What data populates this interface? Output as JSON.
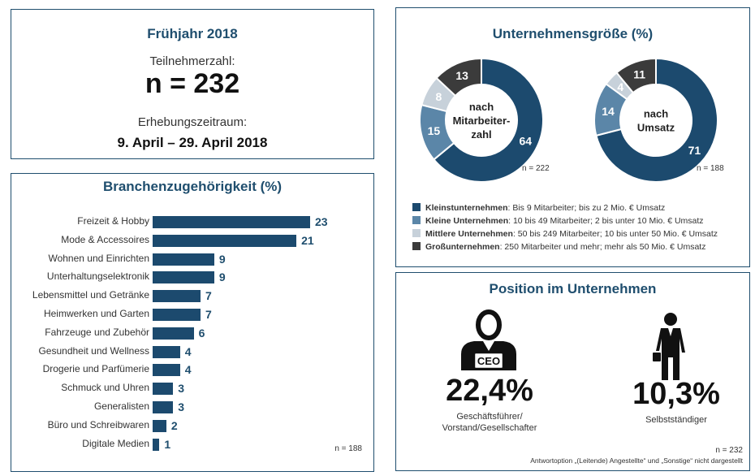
{
  "summary": {
    "title": "Frühjahr 2018",
    "participants_label": "Teilnehmerzahl:",
    "participants_value": "n = 232",
    "period_label": "Erhebungszeitraum:",
    "period_value": "9. April – 29. April 2018"
  },
  "branch": {
    "title": "Branchenzugehörigkeit (%)",
    "n_note": "n = 188"
  },
  "size": {
    "title": "Unternehmensgröße (%)",
    "donut1_center": [
      "nach",
      "Mitarbeiter-",
      "zahl"
    ],
    "donut1_n": "n = 222",
    "donut2_center": [
      "nach",
      "Umsatz"
    ],
    "donut2_n": "n = 188",
    "legend": [
      {
        "name": "Kleinstunternehmen",
        "desc": ": Bis 9 Mitarbeiter; bis zu 2 Mio. € Umsatz",
        "color": "#1c4a6e"
      },
      {
        "name": "Kleine Unternehmen",
        "desc": ": 10 bis 49 Mitarbeiter; 2 bis unter 10 Mio. € Umsatz",
        "color": "#5b86a8"
      },
      {
        "name": "Mittlere Unternehmen",
        "desc": ": 50 bis 249 Mitarbeiter; 10 bis unter 50 Mio. € Umsatz",
        "color": "#c7d1da"
      },
      {
        "name": "Großunternehmen",
        "desc": ": 250 Mitarbeiter und mehr; mehr als 50 Mio. € Umsatz",
        "color": "#3b3b3b"
      }
    ]
  },
  "position": {
    "title": "Position im Unternehmen",
    "ceo_badge": "CEO",
    "ceo_value": "22,4%",
    "ceo_label": [
      "Geschäftsführer/",
      "Vorstand/Gesellschafter"
    ],
    "self_value": "10,3%",
    "self_label": "Selbstständiger",
    "n_note": "n = 232",
    "footnote": "Antwortoption „(Leitende) Angestellte“ und „Sonstige“ nicht dargestellt"
  },
  "chart_data": [
    {
      "type": "bar",
      "title": "Branchenzugehörigkeit (%)",
      "orientation": "horizontal",
      "categories": [
        "Freizeit & Hobby",
        "Mode & Accessoires",
        "Wohnen und Einrichten",
        "Unterhaltungselektronik",
        "Lebensmittel und Getränke",
        "Heimwerken und Garten",
        "Fahrzeuge und Zubehör",
        "Gesundheit und Wellness",
        "Drogerie und Parfümerie",
        "Schmuck und Uhren",
        "Generalisten",
        "Büro und Schreibwaren",
        "Digitale Medien"
      ],
      "values": [
        23,
        21,
        9,
        9,
        7,
        7,
        6,
        4,
        4,
        3,
        3,
        2,
        1
      ],
      "xlim": [
        0,
        25
      ],
      "grid": false
    },
    {
      "type": "pie",
      "donut": true,
      "labels": [
        "Kleinstunternehmen",
        "Kleine Unternehmen",
        "Mittlere Unternehmen",
        "Großunternehmen"
      ],
      "values": [
        64,
        15,
        8,
        13
      ],
      "colors": [
        "#1c4a6e",
        "#5b86a8",
        "#c7d1da",
        "#3b3b3b"
      ]
    },
    {
      "type": "pie",
      "donut": true,
      "labels": [
        "Kleinstunternehmen",
        "Kleine Unternehmen",
        "Mittlere Unternehmen",
        "Großunternehmen"
      ],
      "values": [
        71,
        14,
        4,
        11
      ],
      "colors": [
        "#1c4a6e",
        "#5b86a8",
        "#c7d1da",
        "#3b3b3b"
      ]
    }
  ]
}
